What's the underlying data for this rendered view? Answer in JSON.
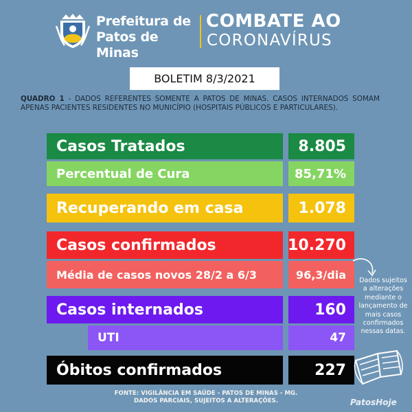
{
  "header": {
    "pref_line1": "Prefeitura de",
    "pref_line2": "Patos de Minas",
    "title_line1": "COMBATE AO",
    "title_line2": "CORONAVÍRUS"
  },
  "boletim": "BOLETIM 8/3/2021",
  "quadro": {
    "label": "QUADRO 1",
    "text": " - DADOS REFERENTES SOMENTE A PATOS DE MINAS. CASOS INTERNADOS SOMAM APENAS PACIENTES RESIDENTES NO MUNICÍPIO (HOSPITAIS PÚBLICOS E PARTICULARES)."
  },
  "rows": [
    {
      "label": "Casos Tratados",
      "value": "8.805"
    },
    {
      "label": "Percentual de Cura",
      "value": "85,71%"
    },
    {
      "label": "Recuperando em casa",
      "value": "1.078"
    },
    {
      "label": "Casos confirmados",
      "value": "10.270"
    },
    {
      "label": "Média de casos novos 28/2 a 6/3",
      "value": "96,3/dia"
    },
    {
      "label": "Casos internados",
      "value": "160"
    },
    {
      "label": "UTI",
      "value": "47"
    },
    {
      "label": "Óbitos confirmados",
      "value": "227"
    }
  ],
  "colors": {
    "background": "#6e95b5",
    "dark_green": "#1a8a45",
    "light_green": "#86d563",
    "yellow": "#f5c20d",
    "red": "#f2272c",
    "salmon": "#f2615f",
    "purple": "#6d19ef",
    "light_purple": "#8b56f5",
    "black": "#050505"
  },
  "note": "Dados sujeitos a alterações mediante o lançamento de mais casos confirmados nessas datas.",
  "fonte_line1": "FONTE: VIGILÂNCIA EM SAÚDE - PATOS DE MINAS - MG.",
  "fonte_line2": "DADOS PARCIAIS, SUJEITOS A ALTERAÇÕES.",
  "brand": "PatosHoje",
  "icons": [
    "city-crest-icon",
    "curved-arrow-icon",
    "face-mask-icon"
  ]
}
